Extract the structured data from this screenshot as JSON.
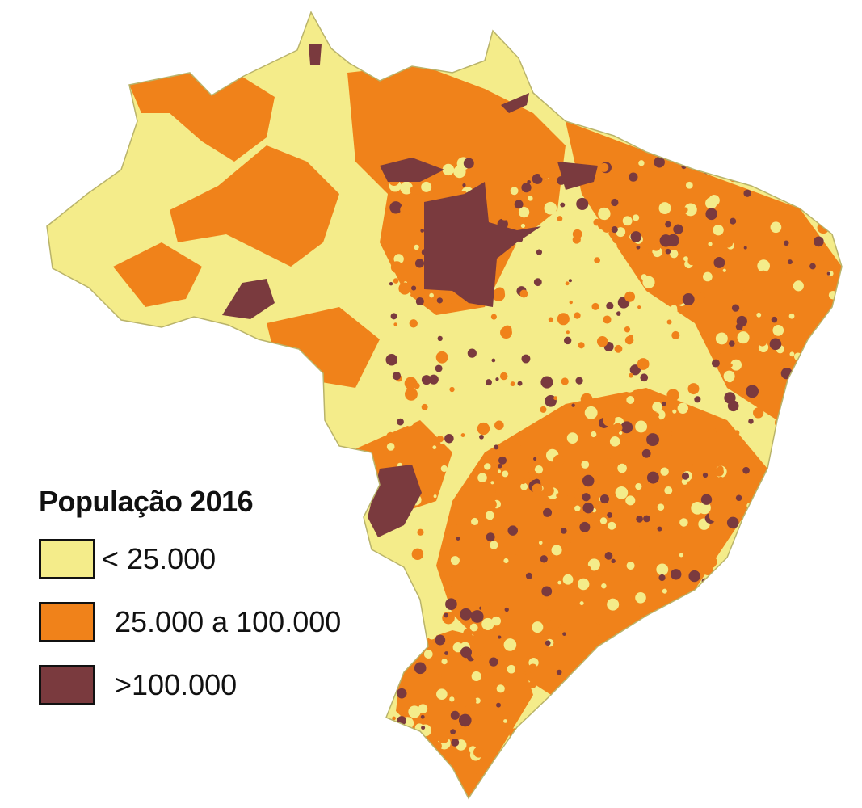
{
  "legend": {
    "title": "População 2016",
    "items": [
      {
        "label": "< 25.000",
        "color": "#f4ec8a"
      },
      {
        "label": "25.000 a 100.000",
        "color": "#f0821a"
      },
      {
        "label": ">100.000",
        "color": "#7a3a3e"
      }
    ]
  },
  "colors": {
    "border": "#c9c36a",
    "outline": "#b9b36a"
  }
}
